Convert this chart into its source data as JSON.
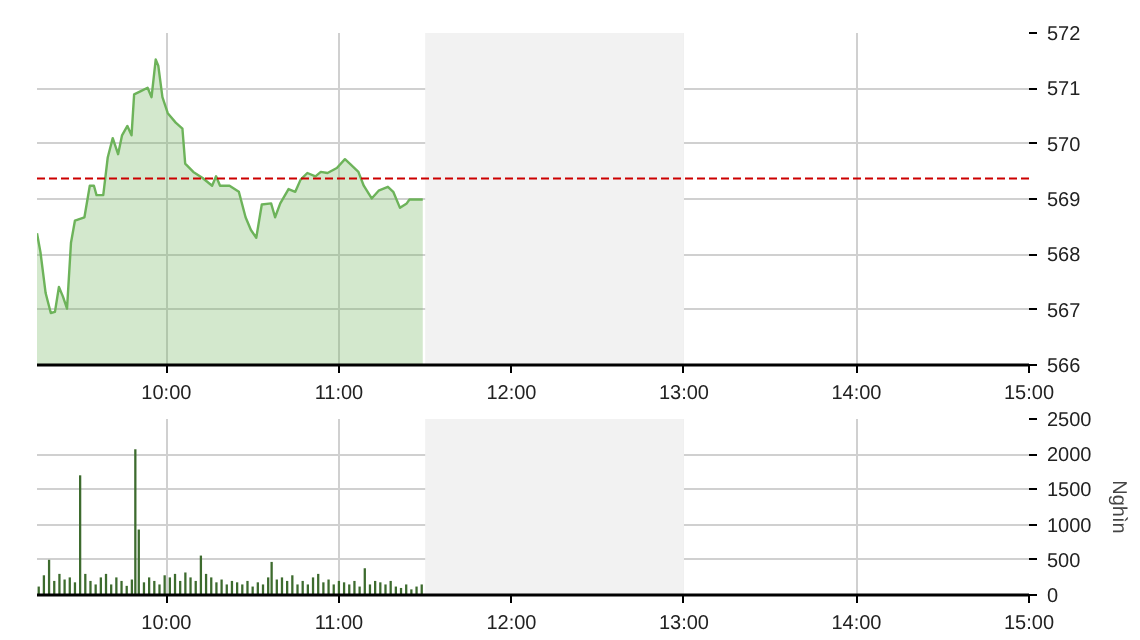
{
  "chart_data": [
    {
      "type": "area",
      "x": [
        9.25,
        9.27,
        9.3,
        9.33,
        9.354,
        9.377,
        9.4,
        9.424,
        9.447,
        9.47,
        9.525,
        9.556,
        9.58,
        9.595,
        9.634,
        9.66,
        9.689,
        9.72,
        9.743,
        9.774,
        9.798,
        9.813,
        9.852,
        9.891,
        9.914,
        9.938,
        9.953,
        9.977,
        10.008,
        10.054,
        10.093,
        10.109,
        10.156,
        10.21,
        10.265,
        10.288,
        10.311,
        10.366,
        10.42,
        10.459,
        10.49,
        10.521,
        10.553,
        10.607,
        10.63,
        10.66,
        10.708,
        10.747,
        10.778,
        10.817,
        10.864,
        10.895,
        10.934,
        10.988,
        11.035,
        11.066,
        11.113,
        11.144,
        11.19,
        11.23,
        11.284,
        11.315,
        11.354,
        11.393,
        11.409,
        11.486
      ],
      "series": [
        {
          "color": "#6db35a",
          "values": [
            568.38,
            568.04,
            567.3,
            566.94,
            566.96,
            567.41,
            567.24,
            567.02,
            568.21,
            568.61,
            568.67,
            569.24,
            569.24,
            569.07,
            569.07,
            569.75,
            570.1,
            569.81,
            570.15,
            570.32,
            570.15,
            570.89,
            570.95,
            571.01,
            570.84,
            571.52,
            571.41,
            570.84,
            570.55,
            570.38,
            570.27,
            569.64,
            569.49,
            569.38,
            569.24,
            569.41,
            569.24,
            569.24,
            569.13,
            568.67,
            568.44,
            568.3,
            568.9,
            568.92,
            568.67,
            568.92,
            569.18,
            569.13,
            569.35,
            569.47,
            569.41,
            569.49,
            569.47,
            569.56,
            569.72,
            569.63,
            569.49,
            569.24,
            569.01,
            569.15,
            569.22,
            569.13,
            568.84,
            568.92,
            568.99,
            568.99
          ]
        }
      ],
      "xlim": [
        9.25,
        15
      ],
      "xticks": [
        {
          "value": 10,
          "label": "10:00"
        },
        {
          "value": 11,
          "label": "11:00"
        },
        {
          "value": 12,
          "label": "12:00"
        },
        {
          "value": 13,
          "label": "13:00"
        },
        {
          "value": 14,
          "label": "14:00"
        },
        {
          "value": 15,
          "label": "15:00"
        }
      ],
      "ylim": [
        566,
        572
      ],
      "yticks": [
        566,
        567,
        568,
        569,
        570,
        571,
        572
      ],
      "grid": true,
      "ref_lines": [
        {
          "axis": "y",
          "value": 569.37,
          "color": "#cc0000",
          "line_style": "dashed"
        }
      ],
      "bands": [
        {
          "axis": "x",
          "from": 11.5,
          "to": 13,
          "color": "#f2f2f2"
        }
      ]
    },
    {
      "type": "bar",
      "x": [
        9.26,
        9.29,
        9.32,
        9.35,
        9.38,
        9.41,
        9.44,
        9.47,
        9.5,
        9.53,
        9.56,
        9.59,
        9.62,
        9.65,
        9.68,
        9.71,
        9.74,
        9.77,
        9.8,
        9.82,
        9.84,
        9.87,
        9.9,
        9.93,
        9.96,
        9.99,
        10.02,
        10.05,
        10.08,
        10.11,
        10.14,
        10.17,
        10.2,
        10.23,
        10.26,
        10.29,
        10.32,
        10.35,
        10.38,
        10.41,
        10.44,
        10.47,
        10.5,
        10.53,
        10.56,
        10.59,
        10.61,
        10.64,
        10.67,
        10.7,
        10.73,
        10.76,
        10.79,
        10.82,
        10.85,
        10.88,
        10.91,
        10.94,
        10.97,
        11.0,
        11.03,
        11.06,
        11.09,
        11.12,
        11.15,
        11.18,
        11.21,
        11.24,
        11.27,
        11.3,
        11.33,
        11.36,
        11.39,
        11.42,
        11.45,
        11.48
      ],
      "series": [
        {
          "color": "#3d6b2e",
          "values": [
            120,
            280,
            500,
            200,
            300,
            220,
            250,
            180,
            1700,
            300,
            200,
            150,
            250,
            300,
            150,
            250,
            200,
            130,
            220,
            2070,
            930,
            180,
            250,
            200,
            150,
            280,
            250,
            300,
            200,
            320,
            250,
            200,
            560,
            300,
            250,
            180,
            220,
            150,
            200,
            180,
            150,
            200,
            120,
            180,
            150,
            250,
            470,
            220,
            250,
            200,
            280,
            150,
            200,
            150,
            250,
            300,
            180,
            220,
            150,
            200,
            180,
            150,
            200,
            120,
            380,
            150,
            200,
            180,
            150,
            200,
            120,
            100,
            150,
            80,
            120,
            150
          ]
        }
      ],
      "xlim": [
        9.25,
        15
      ],
      "xticks": [
        {
          "value": 10,
          "label": "10:00"
        },
        {
          "value": 11,
          "label": "11:00"
        },
        {
          "value": 12,
          "label": "12:00"
        },
        {
          "value": 13,
          "label": "13:00"
        },
        {
          "value": 14,
          "label": "14:00"
        },
        {
          "value": 15,
          "label": "15:00"
        }
      ],
      "ylim": [
        0,
        2500
      ],
      "yticks": [
        0,
        500,
        1000,
        1500,
        2000,
        2500
      ],
      "ylabel": "Nghìn",
      "grid": true,
      "bands": [
        {
          "axis": "x",
          "from": 11.5,
          "to": 13,
          "color": "#f2f2f2"
        }
      ]
    }
  ]
}
